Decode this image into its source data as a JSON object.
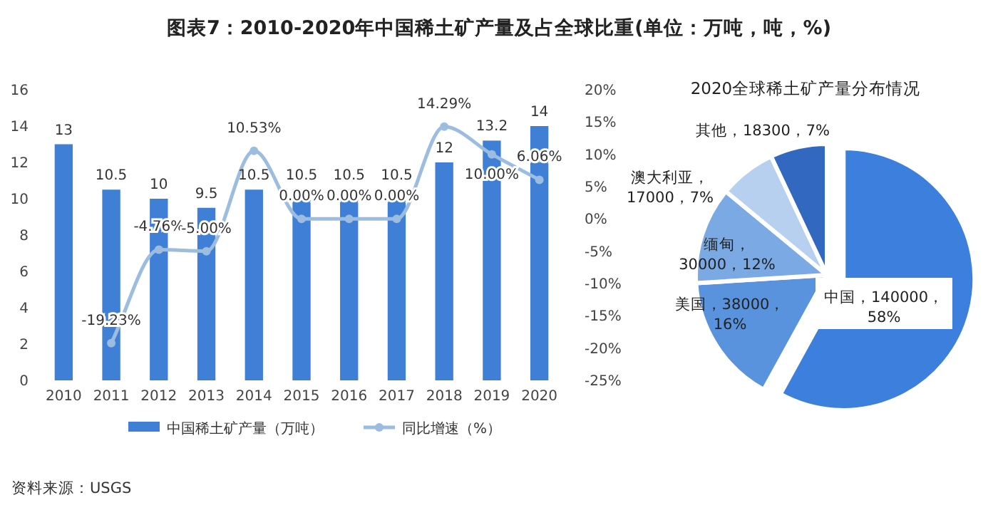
{
  "chart_data": [
    {
      "type": "bar",
      "title": "图表7：2010-2020年中国稀土矿产量及占全球比重(单位：万吨，吨，%)",
      "categories": [
        "2010",
        "2011",
        "2012",
        "2013",
        "2014",
        "2015",
        "2016",
        "2017",
        "2018",
        "2019",
        "2020"
      ],
      "series": [
        {
          "name": "中国稀土矿产量（万吨）",
          "type": "bar",
          "color": "#3f7fd6",
          "values": [
            13,
            10.5,
            10,
            9.5,
            10.5,
            10.5,
            10.5,
            10.5,
            12,
            13.2,
            14
          ],
          "value_labels": [
            "13",
            "10.5",
            "10",
            "9.5",
            "10.5",
            "10.5",
            "10.5",
            "10.5",
            "12",
            "13.2",
            "14"
          ]
        },
        {
          "name": "同比增速（%）",
          "type": "line",
          "axis": "y2",
          "color": "#9dbde0",
          "marker": "circle",
          "values": [
            null,
            -19.23,
            -4.76,
            -5.0,
            10.53,
            0,
            0,
            0,
            14.29,
            10.0,
            6.06
          ],
          "value_labels": [
            null,
            "-19.23%",
            "-4.76%",
            "-5.00%",
            "10.53%",
            "0.00%",
            "0.00%",
            "0.00%",
            "14.29%",
            "10.00%",
            "6.06%"
          ]
        }
      ],
      "ylim": [
        0,
        16
      ],
      "yticks": [
        0,
        2,
        4,
        6,
        8,
        10,
        12,
        14,
        16
      ],
      "y2lim": [
        -25,
        20
      ],
      "y2ticks": [
        {
          "value": -25,
          "label": "-25%"
        },
        {
          "value": -20,
          "label": "-20%"
        },
        {
          "value": -15,
          "label": "-15%"
        },
        {
          "value": -10,
          "label": "-10%"
        },
        {
          "value": -5,
          "label": "-5%"
        },
        {
          "value": 0,
          "label": "0%"
        },
        {
          "value": 5,
          "label": "5%"
        },
        {
          "value": 10,
          "label": "10%"
        },
        {
          "value": 15,
          "label": "15%"
        },
        {
          "value": 20,
          "label": "20%"
        }
      ],
      "grid": false,
      "legend": "bottom",
      "annotations": [
        "资料来源：USGS"
      ]
    },
    {
      "type": "pie",
      "title": "2020全球稀土矿产量分布情况",
      "categories": [
        "中国，140000，58%",
        "美国，38000，16%",
        "缅甸，30000，12%",
        "澳大利亚，17000，7%",
        "其他，18300，7%"
      ],
      "values": [
        58,
        16,
        12,
        7,
        7
      ],
      "colors": [
        "#3d7fdc",
        "#5a93dd",
        "#7aa9e3",
        "#b7d0f0",
        "#3368c0"
      ]
    }
  ]
}
